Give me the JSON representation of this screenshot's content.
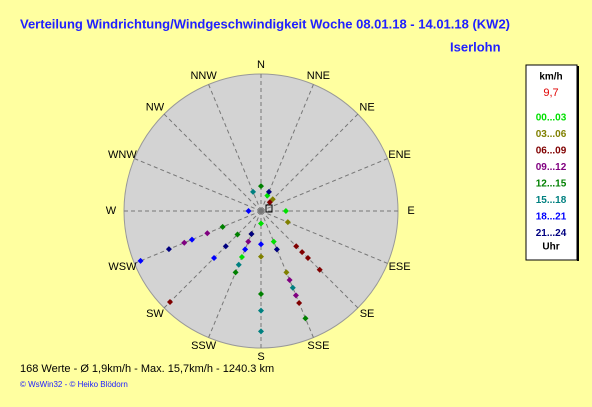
{
  "chart_data": {
    "type": "polar-scatter",
    "title": "Verteilung Windrichtung/Windgeschwindigkeit  Woche 08.01.18 - 14.01.18 (KW2)",
    "location": "Iserlohn",
    "directions": [
      "N",
      "NNE",
      "NE",
      "ENE",
      "E",
      "ESE",
      "SE",
      "SSE",
      "S",
      "SSW",
      "SW",
      "WSW",
      "W",
      "WNW",
      "NW",
      "NNW"
    ],
    "rlim": [
      0,
      16.5
    ],
    "legend_unit": "km/h",
    "legend_value": "9,7",
    "legend_footer": "Uhr",
    "series": [
      {
        "name": "00...03",
        "color": "#00e000",
        "x": [
          90,
          157.5,
          202.5,
          180,
          22.5
        ],
        "values": [
          3.0,
          4.0,
          6.0,
          1.5,
          2.0
        ]
      },
      {
        "name": "03...06",
        "color": "#808000",
        "x": [
          112.5,
          157.5,
          180,
          45,
          202.5
        ],
        "values": [
          3.5,
          8.0,
          5.5,
          2.0,
          3.0
        ]
      },
      {
        "name": "06...09",
        "color": "#800000",
        "x": [
          135,
          135,
          135,
          135,
          157.5,
          225,
          45
        ],
        "values": [
          6.0,
          8.0,
          10.0,
          7.0,
          12.0,
          15.5,
          1.5
        ]
      },
      {
        "name": "09...12",
        "color": "#800080",
        "x": [
          157.5,
          157.5,
          247.5,
          247.5,
          202.5
        ],
        "values": [
          9.0,
          11.0,
          7.0,
          10.0,
          4.0
        ]
      },
      {
        "name": "12...15",
        "color": "#008000",
        "x": [
          157.5,
          180,
          202.5,
          225,
          247.5,
          0
        ],
        "values": [
          14.0,
          10.0,
          8.0,
          4.0,
          5.0,
          3.0
        ]
      },
      {
        "name": "15...18",
        "color": "#008080",
        "x": [
          180,
          180,
          157.5,
          202.5,
          337.5
        ],
        "values": [
          14.5,
          12.0,
          10.0,
          7.0,
          2.5
        ]
      },
      {
        "name": "18...21",
        "color": "#0000ff",
        "x": [
          247.5,
          225,
          202.5,
          247.5,
          180,
          270
        ],
        "values": [
          15.7,
          8.0,
          5.0,
          9.0,
          4.0,
          1.5
        ]
      },
      {
        "name": "21...24",
        "color": "#000080",
        "x": [
          247.5,
          225,
          157.5,
          202.5,
          22.5
        ],
        "values": [
          12.0,
          6.0,
          5.0,
          3.0,
          2.5
        ]
      }
    ],
    "footer": "168 Werte  -  Ø 1,9km/h  -  Max. 15,7km/h  -  1240.3 km",
    "copyright": "© WsWin32  -  © Heiko Blödorn"
  }
}
